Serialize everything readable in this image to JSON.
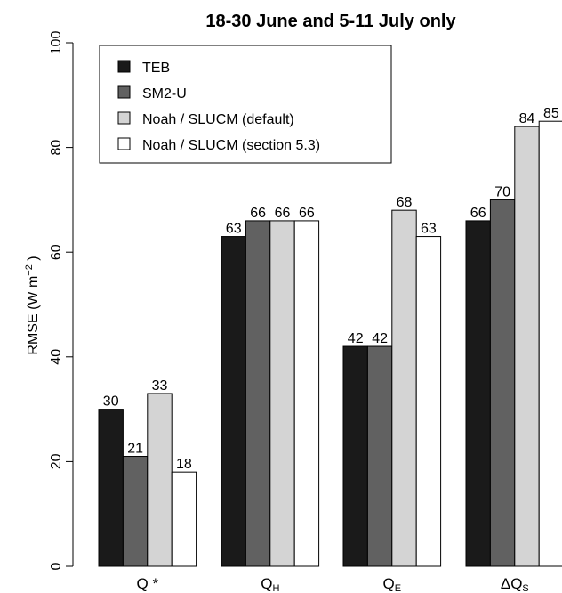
{
  "chart_data": {
    "type": "bar",
    "title": "18-30 June and 5-11 July only",
    "ylabel": {
      "text": "RMSE (W m",
      "sup": "−2",
      "close": " )"
    },
    "ylim": [
      0,
      100
    ],
    "yticks": [
      0,
      20,
      40,
      60,
      80,
      100
    ],
    "legend_position": "top-left",
    "categories": [
      {
        "prefix": "",
        "main": "Q",
        "sub": "",
        "suffix": " *"
      },
      {
        "prefix": "",
        "main": "Q",
        "sub": "H",
        "suffix": ""
      },
      {
        "prefix": "",
        "main": "Q",
        "sub": "E",
        "suffix": ""
      },
      {
        "prefix": "Δ",
        "main": "Q",
        "sub": "S",
        "suffix": ""
      }
    ],
    "series": [
      {
        "name": "TEB",
        "color": "#1a1a1a",
        "values": [
          30,
          63,
          42,
          66
        ]
      },
      {
        "name": "SM2-U",
        "color": "#616161",
        "values": [
          21,
          66,
          42,
          70
        ]
      },
      {
        "name": "Noah / SLUCM (default)",
        "color": "#d4d4d4",
        "values": [
          33,
          66,
          68,
          84
        ]
      },
      {
        "name": "Noah / SLUCM (section 5.3)",
        "color": "#ffffff",
        "values": [
          18,
          66,
          63,
          85
        ]
      }
    ]
  }
}
